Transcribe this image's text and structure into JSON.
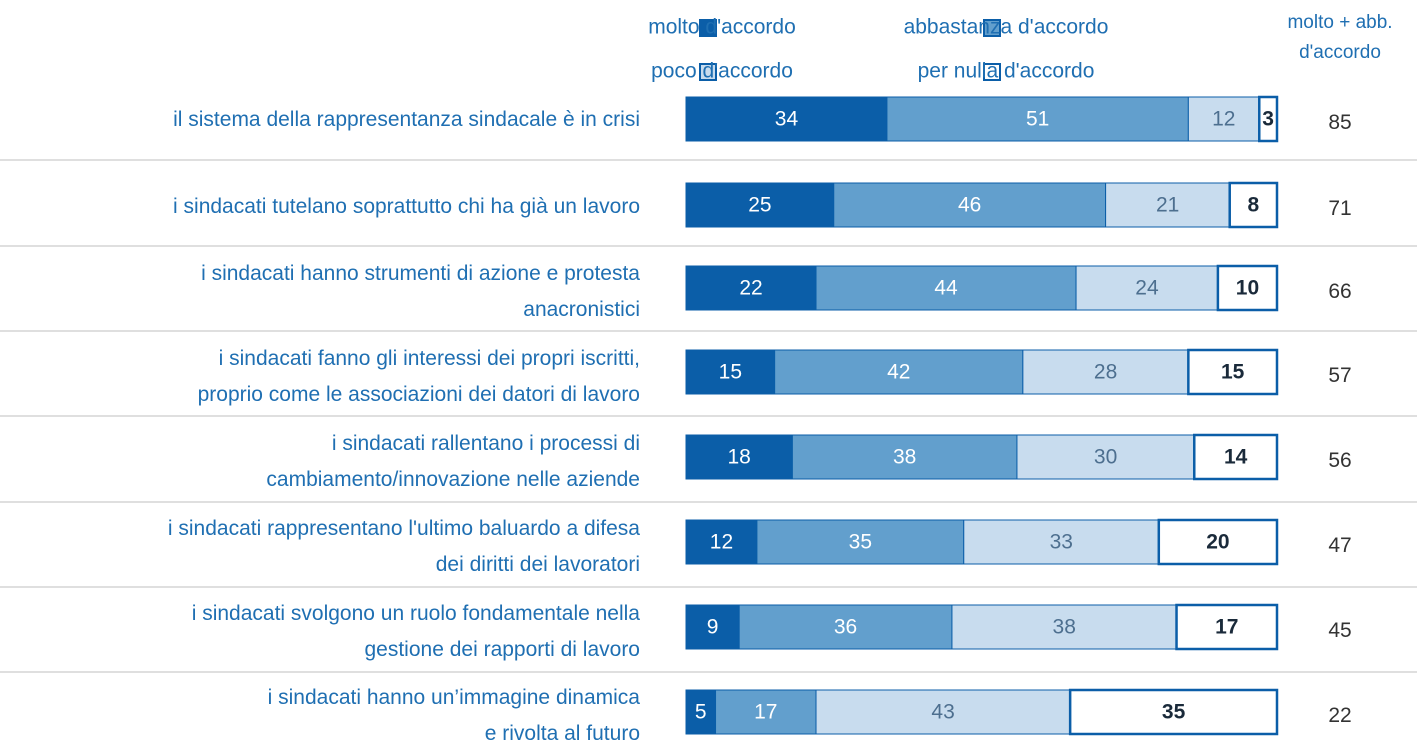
{
  "chart_data": {
    "type": "stacked-bar",
    "categories": [
      "il sistema della rappresentanza sindacale è in crisi",
      "i sindacati tutelano soprattutto chi ha già un lavoro",
      "i sindacati hanno strumenti di azione e protesta\nanacronistici",
      "i sindacati fanno gli interessi dei propri iscritti,\nproprio come le associazioni dei datori di lavoro",
      "i sindacati rallentano i processi di\ncambiamento/innovazione nelle aziende",
      "i sindacati rappresentano l'ultimo baluardo a difesa\ndei diritti dei lavoratori",
      "i sindacati svolgono un ruolo fondamentale nella\ngestione dei rapporti di lavoro",
      "i sindacati hanno un’immagine dinamica\ne rivolta al futuro"
    ],
    "series": [
      {
        "name": "molto d'accordo",
        "color": "#0b5ea8",
        "values": [
          34,
          25,
          22,
          15,
          18,
          12,
          9,
          5
        ]
      },
      {
        "name": "abbastanza d'accordo",
        "color": "#629fcd",
        "values": [
          51,
          46,
          44,
          42,
          38,
          35,
          36,
          17
        ]
      },
      {
        "name": "poco d'accordo",
        "color": "#c8dcee",
        "values": [
          12,
          21,
          24,
          28,
          30,
          33,
          38,
          43
        ]
      },
      {
        "name": "per nulla d'accordo",
        "color": "#ffffff",
        "values": [
          3,
          8,
          10,
          15,
          14,
          20,
          17,
          35
        ]
      }
    ],
    "totals": {
      "name": "molto + abb.\nd'accordo",
      "values": [
        85,
        71,
        66,
        57,
        56,
        47,
        45,
        22
      ]
    },
    "xlim": [
      0,
      100
    ]
  }
}
